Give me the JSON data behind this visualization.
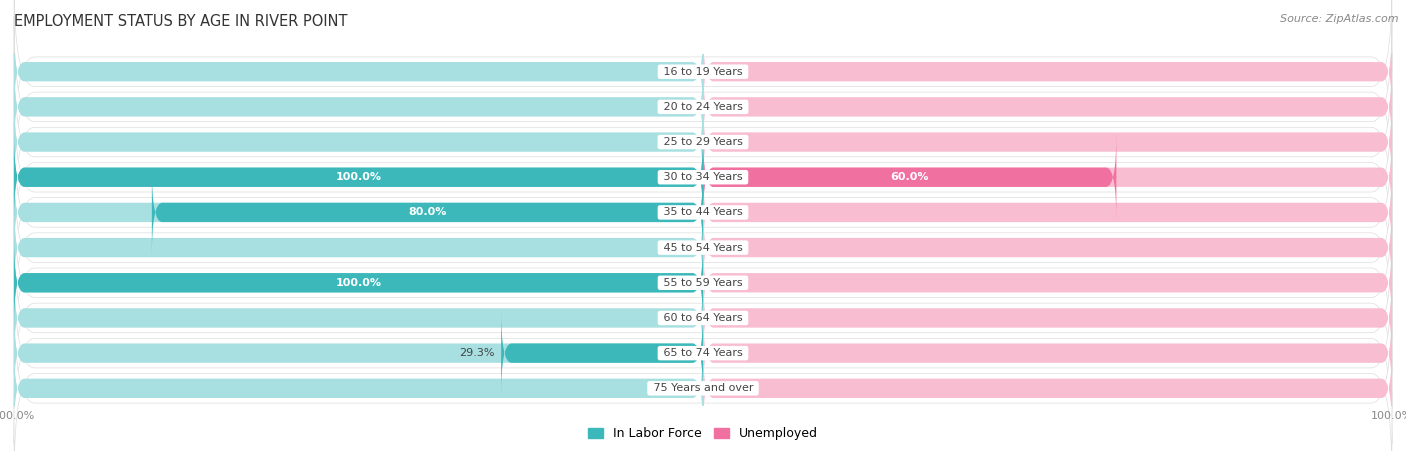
{
  "title": "EMPLOYMENT STATUS BY AGE IN RIVER POINT",
  "source": "Source: ZipAtlas.com",
  "age_groups": [
    "16 to 19 Years",
    "20 to 24 Years",
    "25 to 29 Years",
    "30 to 34 Years",
    "35 to 44 Years",
    "45 to 54 Years",
    "55 to 59 Years",
    "60 to 64 Years",
    "65 to 74 Years",
    "75 Years and over"
  ],
  "labor_force": [
    0.0,
    0.0,
    0.0,
    100.0,
    80.0,
    0.0,
    100.0,
    0.0,
    29.3,
    0.0
  ],
  "unemployed": [
    0.0,
    0.0,
    0.0,
    60.0,
    0.0,
    0.0,
    0.0,
    0.0,
    0.0,
    0.0
  ],
  "labor_force_color": "#3cb8ba",
  "labor_force_bg_color": "#a8dfe0",
  "unemployed_color": "#f070a0",
  "unemployed_bg_color": "#f8bdd0",
  "row_bg_color": "#f0f0f0",
  "row_border_color": "#dddddd",
  "label_color_dark": "#444444",
  "label_color_white": "#ffffff",
  "title_fontsize": 10.5,
  "label_fontsize": 8,
  "legend_fontsize": 9,
  "source_fontsize": 8,
  "x_max": 100,
  "x_min": -100,
  "bar_height": 0.55,
  "center_label_color": "#444444",
  "bg_color": "#ffffff"
}
